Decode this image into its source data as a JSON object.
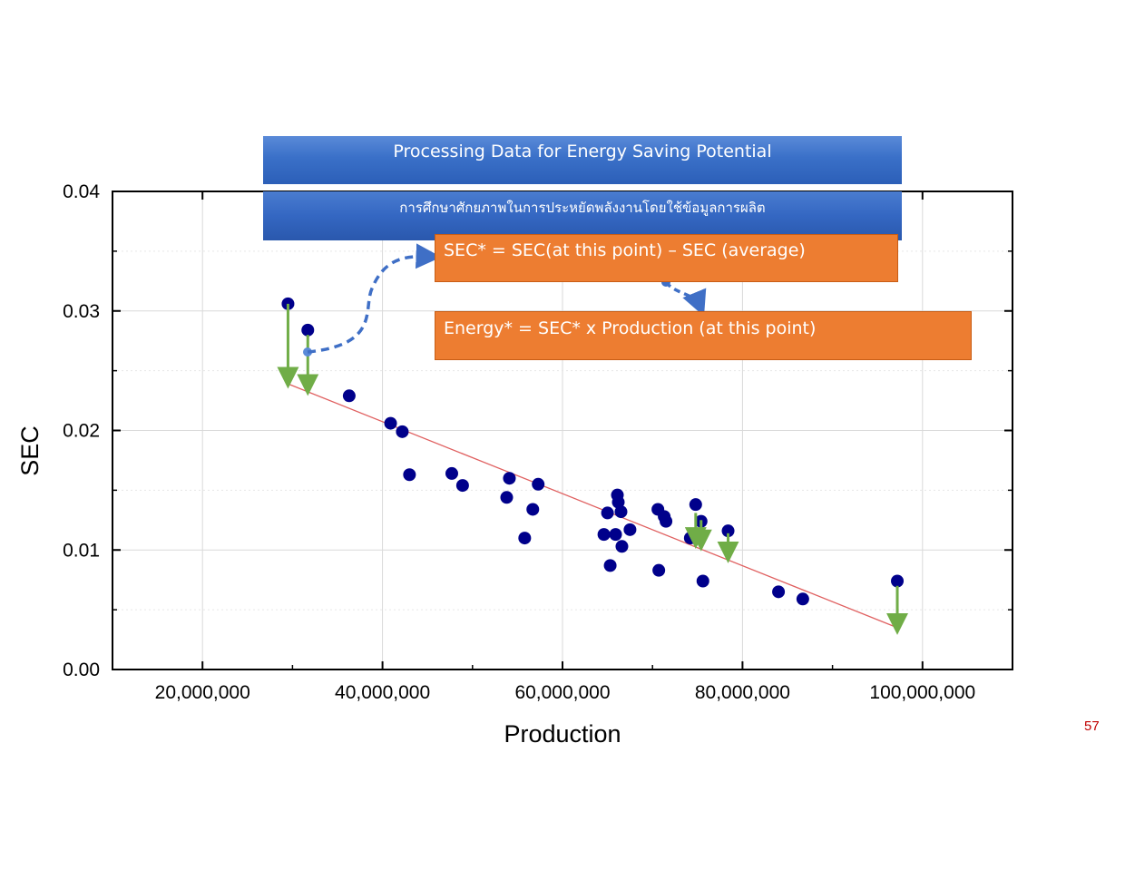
{
  "slide": {
    "title": "Processing Data for Energy Saving Potential",
    "subtitle_thai": "การศึกษาศักยภาพในการประหยัดพลังงานโดยใช้ข้อมูลการผลิต",
    "formula_sec": "SEC* = SEC(at this point) – SEC (average)",
    "formula_energy": "Energy* = SEC* x Production (at this point)",
    "page_number": "57"
  },
  "colors": {
    "points": "#00008b",
    "trend_line": "#e06060",
    "arrows": "#70ad47",
    "dashed_arrows": "#3f6fc6",
    "formula_box": "#ed7d31",
    "banner": "#3a6fc4",
    "page_number": "#c00000"
  },
  "chart_data": {
    "type": "scatter",
    "title": "",
    "xlabel": "Production",
    "ylabel": "SEC",
    "xlim": [
      10000000,
      110000000
    ],
    "ylim": [
      0,
      0.04
    ],
    "grid": true,
    "x_tick_labels": [
      "20,000,000",
      "40,000,000",
      "60,000,000",
      "80,000,000",
      "100,000,000"
    ],
    "x_ticks": [
      20000000,
      40000000,
      60000000,
      80000000,
      100000000
    ],
    "y_tick_labels": [
      "0.00",
      "0.01",
      "0.02",
      "0.03",
      "0.04"
    ],
    "y_ticks": [
      0,
      0.01,
      0.02,
      0.03,
      0.04
    ],
    "points": [
      [
        29500000,
        0.0306
      ],
      [
        31700000,
        0.0284
      ],
      [
        36300000,
        0.0229
      ],
      [
        40900000,
        0.0206
      ],
      [
        42200000,
        0.0199
      ],
      [
        43000000,
        0.0163
      ],
      [
        47700000,
        0.0164
      ],
      [
        48900000,
        0.0154
      ],
      [
        53800000,
        0.0144
      ],
      [
        54100000,
        0.016
      ],
      [
        55800000,
        0.011
      ],
      [
        56700000,
        0.0134
      ],
      [
        57300000,
        0.0155
      ],
      [
        64600000,
        0.0113
      ],
      [
        65000000,
        0.0131
      ],
      [
        65300000,
        0.0087
      ],
      [
        65900000,
        0.0113
      ],
      [
        66100000,
        0.0146
      ],
      [
        66200000,
        0.014
      ],
      [
        66500000,
        0.0132
      ],
      [
        66600000,
        0.0103
      ],
      [
        67500000,
        0.0117
      ],
      [
        70600000,
        0.0134
      ],
      [
        70700000,
        0.0083
      ],
      [
        71300000,
        0.0128
      ],
      [
        71500000,
        0.0124
      ],
      [
        74200000,
        0.011
      ],
      [
        74800000,
        0.0138
      ],
      [
        75400000,
        0.0124
      ],
      [
        75600000,
        0.0074
      ],
      [
        78400000,
        0.0116
      ],
      [
        84000000,
        0.0065
      ],
      [
        86700000,
        0.0059
      ],
      [
        97200000,
        0.0074
      ]
    ],
    "trend_line": {
      "x": [
        29500000,
        97200000
      ],
      "y": [
        0.0239,
        0.0035
      ]
    },
    "deviation_arrows": [
      {
        "x": 29500000,
        "from": 0.0306,
        "to": 0.0244
      },
      {
        "x": 31700000,
        "from": 0.028,
        "to": 0.0238
      },
      {
        "x": 74800000,
        "from": 0.0131,
        "to": 0.011
      },
      {
        "x": 75400000,
        "from": 0.0125,
        "to": 0.0108
      },
      {
        "x": 78400000,
        "from": 0.0114,
        "to": 0.0098
      },
      {
        "x": 97200000,
        "from": 0.007,
        "to": 0.0038
      }
    ]
  }
}
